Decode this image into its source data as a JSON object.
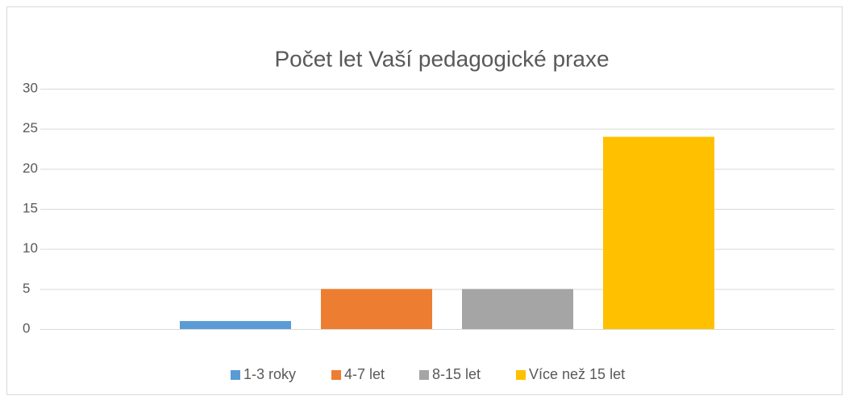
{
  "chart_data": {
    "type": "bar",
    "title": "Počet let Vaší pedagogické praxe",
    "categories": [
      null
    ],
    "series": [
      {
        "name": "1-3 roky",
        "color": "#5b9bd5",
        "values": [
          1
        ]
      },
      {
        "name": "4-7 let",
        "color": "#ed7d31",
        "values": [
          5
        ]
      },
      {
        "name": "8-15 let",
        "color": "#a5a5a5",
        "values": [
          5
        ]
      },
      {
        "name": "Více než 15 let",
        "color": "#ffc000",
        "values": [
          24
        ]
      }
    ],
    "ylim": [
      0,
      30
    ],
    "yticks": [
      0,
      5,
      10,
      15,
      20,
      25,
      30
    ],
    "grid": true,
    "legend": "bottom"
  }
}
